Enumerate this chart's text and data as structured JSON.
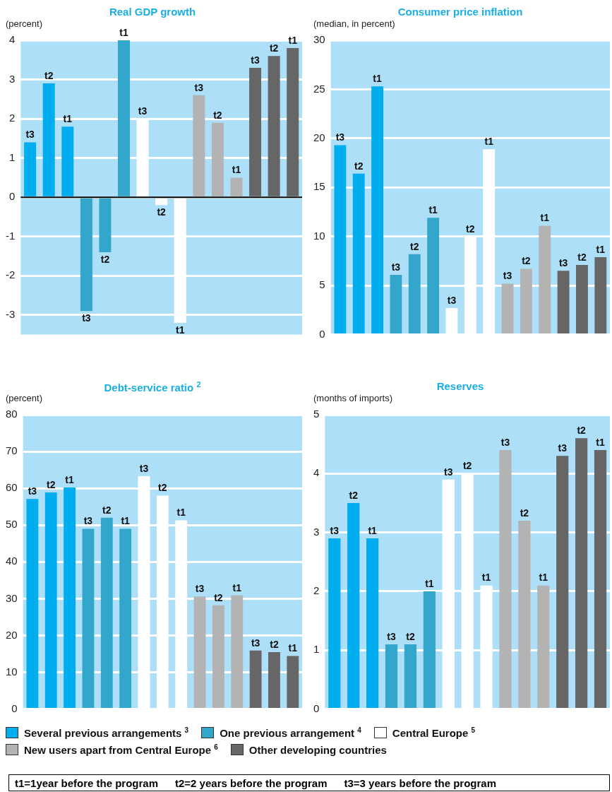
{
  "chart_data": [
    {
      "type": "bar",
      "title": "Real GDP growth",
      "ylabel": "(percent)",
      "categories": [
        null,
        null,
        null,
        null,
        null,
        null,
        null,
        null,
        null,
        null,
        null,
        null,
        null,
        null,
        null
      ],
      "series": [
        {
          "color": "#00aeef",
          "values": [
            1.4,
            2.9,
            1.8,
            null,
            null,
            null,
            null,
            null,
            null,
            null,
            null,
            null,
            null,
            null,
            null
          ],
          "value_labels": [
            "t3",
            "t2",
            "t1",
            null,
            null,
            null,
            null,
            null,
            null,
            null,
            null,
            null,
            null,
            null,
            null
          ]
        },
        {
          "color": "#33a6cc",
          "values": [
            null,
            null,
            null,
            -2.9,
            -1.4,
            4.0,
            null,
            null,
            null,
            null,
            null,
            null,
            null,
            null,
            null
          ],
          "value_labels": [
            null,
            null,
            null,
            "t3",
            "t2",
            "t1",
            null,
            null,
            null,
            null,
            null,
            null,
            null,
            null,
            null
          ]
        },
        {
          "color": "#ffffff",
          "values": [
            null,
            null,
            null,
            null,
            null,
            null,
            2.0,
            -0.2,
            -3.2,
            null,
            null,
            null,
            null,
            null,
            null
          ],
          "value_labels": [
            null,
            null,
            null,
            null,
            null,
            null,
            "t3",
            "t2",
            "t1",
            null,
            null,
            null,
            null,
            null,
            null
          ]
        },
        {
          "color": "#b3b3b3",
          "values": [
            null,
            null,
            null,
            null,
            null,
            null,
            null,
            null,
            null,
            2.6,
            1.9,
            0.5,
            null,
            null,
            null
          ],
          "value_labels": [
            null,
            null,
            null,
            null,
            null,
            null,
            null,
            null,
            null,
            "t3",
            "t2",
            "t1",
            null,
            null,
            null
          ]
        },
        {
          "color": "#666666",
          "values": [
            null,
            null,
            null,
            null,
            null,
            null,
            null,
            null,
            null,
            null,
            null,
            null,
            3.3,
            3.6,
            3.8
          ],
          "value_labels": [
            null,
            null,
            null,
            null,
            null,
            null,
            null,
            null,
            null,
            null,
            null,
            null,
            "t3",
            "t2",
            "t1"
          ]
        }
      ],
      "ylim": [
        -3.5,
        4
      ],
      "yticks": [
        -3,
        -2,
        -1,
        0,
        1,
        2,
        3,
        4
      ],
      "grid": "y",
      "ref_lines": [
        {
          "axis": "y",
          "value": 0,
          "color": "#000000"
        }
      ]
    },
    {
      "type": "bar",
      "title": "Consumer price inflation",
      "ylabel": "(median, in percent)",
      "categories": [
        null,
        null,
        null,
        null,
        null,
        null,
        null,
        null,
        null,
        null,
        null,
        null,
        null,
        null,
        null
      ],
      "series": [
        {
          "color": "#00aeef",
          "values": [
            19.3,
            16.4,
            25.3,
            null,
            null,
            null,
            null,
            null,
            null,
            null,
            null,
            null,
            null,
            null,
            null
          ],
          "value_labels": [
            "t3",
            "t2",
            "t1",
            null,
            null,
            null,
            null,
            null,
            null,
            null,
            null,
            null,
            null,
            null,
            null
          ]
        },
        {
          "color": "#33a6cc",
          "values": [
            null,
            null,
            null,
            6.1,
            8.2,
            11.9,
            null,
            null,
            null,
            null,
            null,
            null,
            null,
            null,
            null
          ],
          "value_labels": [
            null,
            null,
            null,
            "t3",
            "t2",
            "t1",
            null,
            null,
            null,
            null,
            null,
            null,
            null,
            null,
            null
          ]
        },
        {
          "color": "#ffffff",
          "values": [
            null,
            null,
            null,
            null,
            null,
            null,
            2.7,
            10.0,
            18.9,
            null,
            null,
            null,
            null,
            null,
            null
          ],
          "value_labels": [
            null,
            null,
            null,
            null,
            null,
            null,
            "t3",
            "t2",
            "t1",
            null,
            null,
            null,
            null,
            null,
            null
          ]
        },
        {
          "color": "#b3b3b3",
          "values": [
            null,
            null,
            null,
            null,
            null,
            null,
            null,
            null,
            null,
            5.2,
            6.7,
            11.1,
            null,
            null,
            null
          ],
          "value_labels": [
            null,
            null,
            null,
            null,
            null,
            null,
            null,
            null,
            null,
            "t3",
            "t2",
            "t1",
            null,
            null,
            null
          ]
        },
        {
          "color": "#666666",
          "values": [
            null,
            null,
            null,
            null,
            null,
            null,
            null,
            null,
            null,
            null,
            null,
            null,
            6.5,
            7.1,
            7.9
          ],
          "value_labels": [
            null,
            null,
            null,
            null,
            null,
            null,
            null,
            null,
            null,
            null,
            null,
            null,
            "t3",
            "t2",
            "t1"
          ]
        }
      ],
      "ylim": [
        0,
        30
      ],
      "yticks": [
        0,
        5,
        10,
        15,
        20,
        25,
        30
      ],
      "grid": "y"
    },
    {
      "type": "bar",
      "title": "Debt-service ratio $^{2}$",
      "ylabel": "(percent)",
      "categories": [
        null,
        null,
        null,
        null,
        null,
        null,
        null,
        null,
        null,
        null,
        null,
        null,
        null,
        null,
        null
      ],
      "series": [
        {
          "color": "#00aeef",
          "values": [
            57.1,
            58.9,
            60.2,
            null,
            null,
            null,
            null,
            null,
            null,
            null,
            null,
            null,
            null,
            null,
            null
          ],
          "value_labels": [
            "t3",
            "t2",
            "t1",
            null,
            null,
            null,
            null,
            null,
            null,
            null,
            null,
            null,
            null,
            null,
            null
          ]
        },
        {
          "color": "#33a6cc",
          "values": [
            null,
            null,
            null,
            49.0,
            52.0,
            49.0,
            null,
            null,
            null,
            null,
            null,
            null,
            null,
            null,
            null
          ],
          "value_labels": [
            null,
            null,
            null,
            "t3",
            "t2",
            "t1",
            null,
            null,
            null,
            null,
            null,
            null,
            null,
            null,
            null
          ]
        },
        {
          "color": "#ffffff",
          "values": [
            null,
            null,
            null,
            null,
            null,
            null,
            63.3,
            58.0,
            51.3,
            null,
            null,
            null,
            null,
            null,
            null
          ],
          "value_labels": [
            null,
            null,
            null,
            null,
            null,
            null,
            "t3",
            "t2",
            "t1",
            null,
            null,
            null,
            null,
            null,
            null
          ]
        },
        {
          "color": "#b3b3b3",
          "values": [
            null,
            null,
            null,
            null,
            null,
            null,
            null,
            null,
            null,
            30.6,
            28.2,
            30.9,
            null,
            null,
            null
          ],
          "value_labels": [
            null,
            null,
            null,
            null,
            null,
            null,
            null,
            null,
            null,
            "t3",
            "t2",
            "t1",
            null,
            null,
            null
          ]
        },
        {
          "color": "#666666",
          "values": [
            null,
            null,
            null,
            null,
            null,
            null,
            null,
            null,
            null,
            null,
            null,
            null,
            15.9,
            15.5,
            14.4
          ],
          "value_labels": [
            null,
            null,
            null,
            null,
            null,
            null,
            null,
            null,
            null,
            null,
            null,
            null,
            "t3",
            "t2",
            "t1"
          ]
        }
      ],
      "ylim": [
        0,
        80
      ],
      "yticks": [
        0,
        10,
        20,
        30,
        40,
        50,
        60,
        70,
        80
      ],
      "grid": "y"
    },
    {
      "type": "bar",
      "title": "Reserves",
      "ylabel": "(months of imports)",
      "categories": [
        null,
        null,
        null,
        null,
        null,
        null,
        null,
        null,
        null,
        null,
        null,
        null,
        null,
        null,
        null
      ],
      "series": [
        {
          "name": "Several previous arrangements $^{3}$",
          "color": "#00aeef",
          "values": [
            2.9,
            3.5,
            2.9,
            null,
            null,
            null,
            null,
            null,
            null,
            null,
            null,
            null,
            null,
            null,
            null
          ],
          "value_labels": [
            "t3",
            "t2",
            "t1",
            null,
            null,
            null,
            null,
            null,
            null,
            null,
            null,
            null,
            null,
            null,
            null
          ]
        },
        {
          "name": "One previous arrangement $^{4}$",
          "color": "#33a6cc",
          "values": [
            null,
            null,
            null,
            1.1,
            1.1,
            2.0,
            null,
            null,
            null,
            null,
            null,
            null,
            null,
            null,
            null
          ],
          "value_labels": [
            null,
            null,
            null,
            "t3",
            "t2",
            "t1",
            null,
            null,
            null,
            null,
            null,
            null,
            null,
            null,
            null
          ]
        },
        {
          "name": "Central Europe $^{5}$",
          "color": "#ffffff",
          "values": [
            null,
            null,
            null,
            null,
            null,
            null,
            3.9,
            4.0,
            2.1,
            null,
            null,
            null,
            null,
            null,
            null
          ],
          "value_labels": [
            null,
            null,
            null,
            null,
            null,
            null,
            "t3",
            "t2",
            "t1",
            null,
            null,
            null,
            null,
            null,
            null
          ]
        },
        {
          "name": "New users apart from Central Europe $^{6}$",
          "color": "#b3b3b3",
          "values": [
            null,
            null,
            null,
            null,
            null,
            null,
            null,
            null,
            null,
            4.4,
            3.2,
            2.1,
            null,
            null,
            null
          ],
          "value_labels": [
            null,
            null,
            null,
            null,
            null,
            null,
            null,
            null,
            null,
            "t3",
            "t2",
            "t1",
            null,
            null,
            null
          ]
        },
        {
          "name": "Other developing countries",
          "color": "#666666",
          "values": [
            null,
            null,
            null,
            null,
            null,
            null,
            null,
            null,
            null,
            null,
            null,
            null,
            4.3,
            4.6,
            4.4
          ],
          "value_labels": [
            null,
            null,
            null,
            null,
            null,
            null,
            null,
            null,
            null,
            null,
            null,
            null,
            "t3",
            "t2",
            "t1"
          ]
        }
      ],
      "ylim": [
        0,
        5
      ],
      "yticks": [
        0,
        1,
        2,
        3,
        4,
        5
      ],
      "grid": "y",
      "legend": "bottom",
      "annotations": [
        "t1=1year before the program",
        "t2=2 years before the program",
        "t3=3 years before the program"
      ]
    }
  ]
}
